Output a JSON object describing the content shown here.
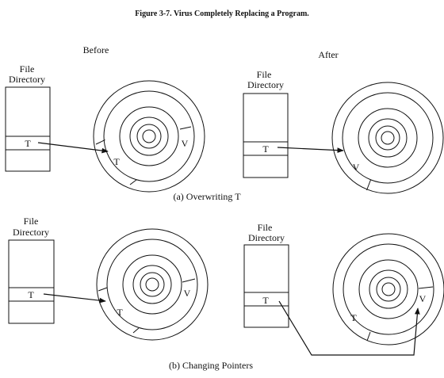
{
  "figure_title": "Figure 3-7. Virus Completely Replacing a Program.",
  "labels": {
    "before": "Before",
    "after": "After",
    "file_directory_line1": "File",
    "file_directory_line2": "Directory",
    "entry_t": "T",
    "block_t": "T",
    "block_v": "V"
  },
  "captions": {
    "a": "(a)  Overwriting T",
    "b": "(b)  Changing Pointers"
  }
}
